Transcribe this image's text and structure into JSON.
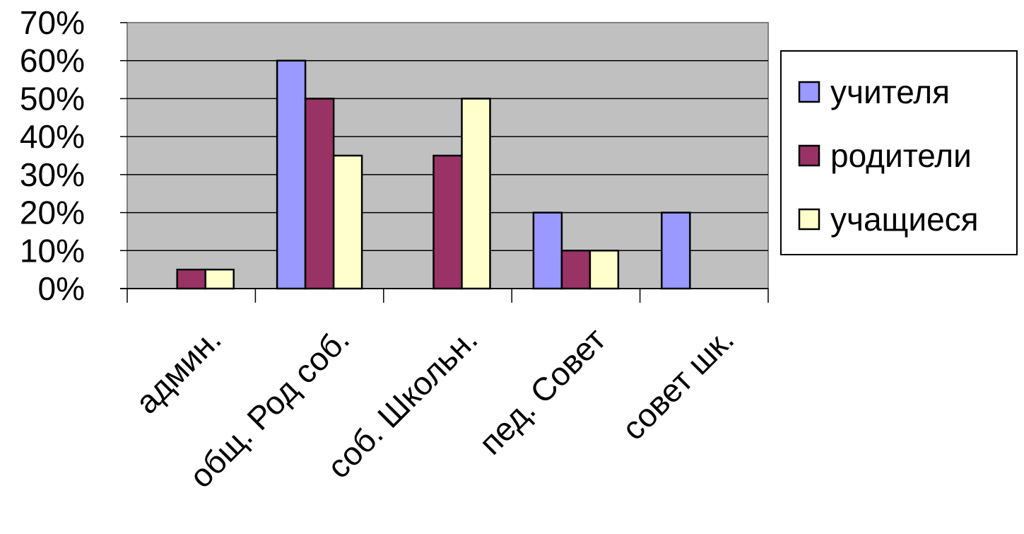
{
  "chart_data": {
    "type": "bar",
    "categories": [
      "админ.",
      "общ. Род соб.",
      "соб. Школьн.",
      "пед. Совет",
      "совет шк."
    ],
    "series": [
      {
        "name": "учителя",
        "values": [
          0,
          60,
          0,
          20,
          20
        ],
        "color": "#9999ff"
      },
      {
        "name": "родители",
        "values": [
          5,
          50,
          35,
          10,
          0
        ],
        "color": "#993366"
      },
      {
        "name": "учащиеся",
        "values": [
          5,
          35,
          50,
          10,
          0
        ],
        "color": "#ffffcc"
      }
    ],
    "ylim": [
      0,
      70
    ],
    "yticks": [
      "0%",
      "10%",
      "20%",
      "30%",
      "40%",
      "50%",
      "60%",
      "70%"
    ],
    "grid": true,
    "plot_background": "#c0c0c0",
    "legend_position": "right"
  }
}
